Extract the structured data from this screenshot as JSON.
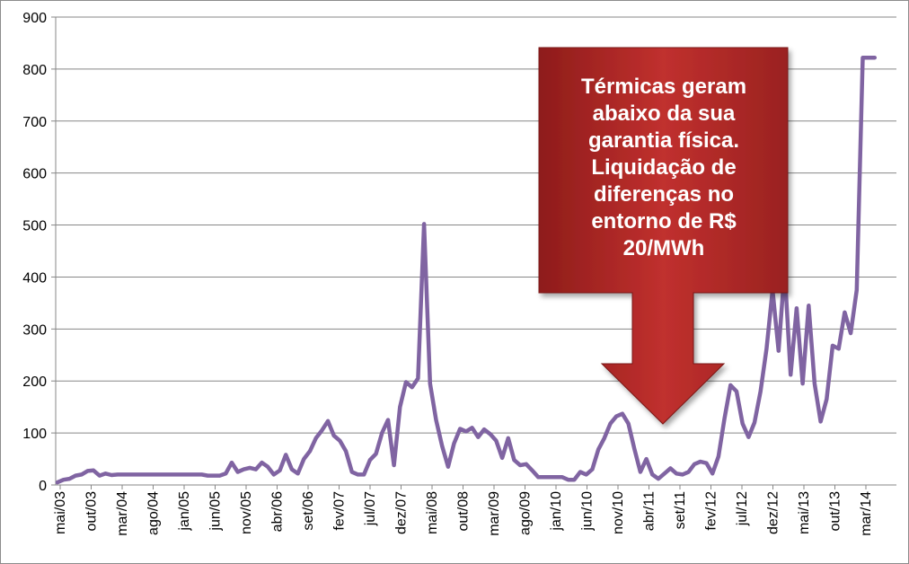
{
  "chart_data": {
    "type": "line",
    "color": "#8064a2",
    "ylim": [
      0,
      900
    ],
    "yticks": [
      0,
      100,
      200,
      300,
      400,
      500,
      600,
      700,
      800,
      900
    ],
    "xtick_labels": [
      "mai/03",
      "out/03",
      "mar/04",
      "ago/04",
      "jan/05",
      "jun/05",
      "nov/05",
      "abr/06",
      "set/06",
      "fev/07",
      "jul/07",
      "dez/07",
      "mai/08",
      "out/08",
      "mar/09",
      "ago/09",
      "jan/10",
      "jun/10",
      "nov/10",
      "abr/11",
      "set/11",
      "fev/12",
      "jul/12",
      "dez/12",
      "mai/13",
      "out/13",
      "mar/14"
    ],
    "grid": true,
    "legend": "none",
    "series": [
      {
        "values": [
          5,
          10,
          12,
          18,
          20,
          27,
          28,
          18,
          22,
          19,
          20,
          20,
          20,
          20,
          20,
          20,
          20,
          20,
          20,
          20,
          20,
          20,
          20,
          20,
          20,
          18,
          18,
          18,
          22,
          43,
          25,
          30,
          33,
          30,
          43,
          35,
          20,
          28,
          58,
          30,
          22,
          50,
          65,
          90,
          105,
          123,
          95,
          85,
          65,
          25,
          20,
          20,
          48,
          60,
          100,
          125,
          38,
          150,
          198,
          188,
          205,
          502,
          195,
          125,
          75,
          35,
          80,
          108,
          103,
          110,
          92,
          107,
          98,
          85,
          52,
          90,
          48,
          38,
          40,
          28,
          15,
          15,
          15,
          15,
          15,
          10,
          10,
          25,
          20,
          30,
          68,
          90,
          118,
          132,
          137,
          118,
          70,
          25,
          50,
          20,
          12,
          22,
          32,
          22,
          20,
          25,
          40,
          45,
          42,
          22,
          55,
          128,
          192,
          180,
          118,
          92,
          120,
          180,
          262,
          375,
          258,
          415,
          212,
          340,
          195,
          345,
          195,
          122,
          165,
          268,
          262,
          332,
          292,
          375,
          822,
          822,
          822
        ]
      }
    ],
    "annotation": {
      "text_lines": [
        "Térmicas geram",
        "abaixo da sua",
        "garantia física.",
        "Liquidação de",
        "diferenças no",
        "entorno de R$",
        "20/MWh"
      ],
      "color": "#c0302e"
    }
  }
}
